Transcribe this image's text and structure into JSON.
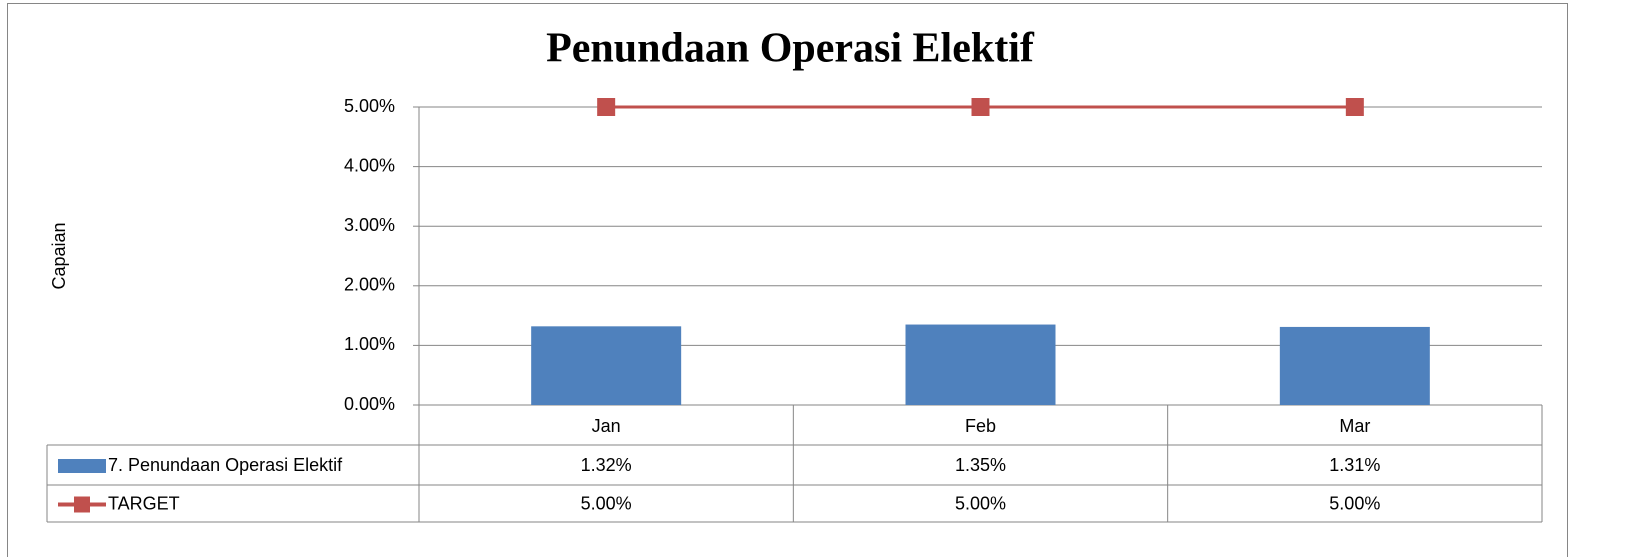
{
  "chart_data": {
    "type": "bar",
    "title": "Penundaan Operasi Elektif",
    "y_label": "Capaian",
    "categories": [
      "Jan",
      "Feb",
      "Mar"
    ],
    "series": [
      {
        "name": "7. Penundaan Operasi Elektif",
        "type": "bar",
        "color": "#4f81bd",
        "values": [
          1.32,
          1.35,
          1.31
        ],
        "value_labels": [
          "1.32%",
          "1.35%",
          "1.31%"
        ]
      },
      {
        "name": "TARGET",
        "type": "line",
        "color": "#c0504d",
        "values": [
          5,
          5,
          5
        ],
        "value_labels": [
          "5.00%",
          "5.00%",
          "5.00%"
        ]
      }
    ],
    "ylim": [
      0,
      5
    ],
    "yticks": [
      {
        "value": 0,
        "label": "0.00%"
      },
      {
        "value": 1,
        "label": "1.00%"
      },
      {
        "value": 2,
        "label": "2.00%"
      },
      {
        "value": 3,
        "label": "3.00%"
      },
      {
        "value": 4,
        "label": "4.00%"
      },
      {
        "value": 5,
        "label": "5.00%"
      }
    ],
    "grid": true
  }
}
